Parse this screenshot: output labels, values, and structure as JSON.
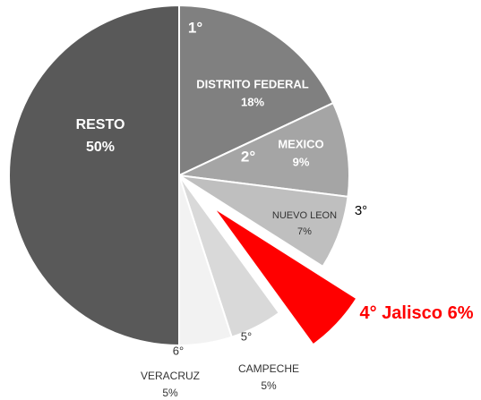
{
  "chart_data": {
    "type": "pie",
    "categories": [
      "DISTRITO FEDERAL",
      "MEXICO",
      "NUEVO LEON",
      "Jalisco",
      "CAMPECHE",
      "VERACRUZ",
      "RESTO"
    ],
    "values": [
      18,
      9,
      7,
      6,
      5,
      5,
      50
    ],
    "value_labels": [
      "18%",
      "9%",
      "7%",
      "6%",
      "5%",
      "5%",
      "50%"
    ],
    "ranks": [
      "1°",
      "2°",
      "3°",
      "4°",
      "5°",
      "6°",
      null
    ],
    "colors": [
      "#808080",
      "#a5a5a5",
      "#bfbfbf",
      "#ff0000",
      "#d9d9d9",
      "#f2f2f2",
      "#595959"
    ],
    "exploded": [
      false,
      false,
      false,
      true,
      false,
      false,
      false
    ]
  }
}
